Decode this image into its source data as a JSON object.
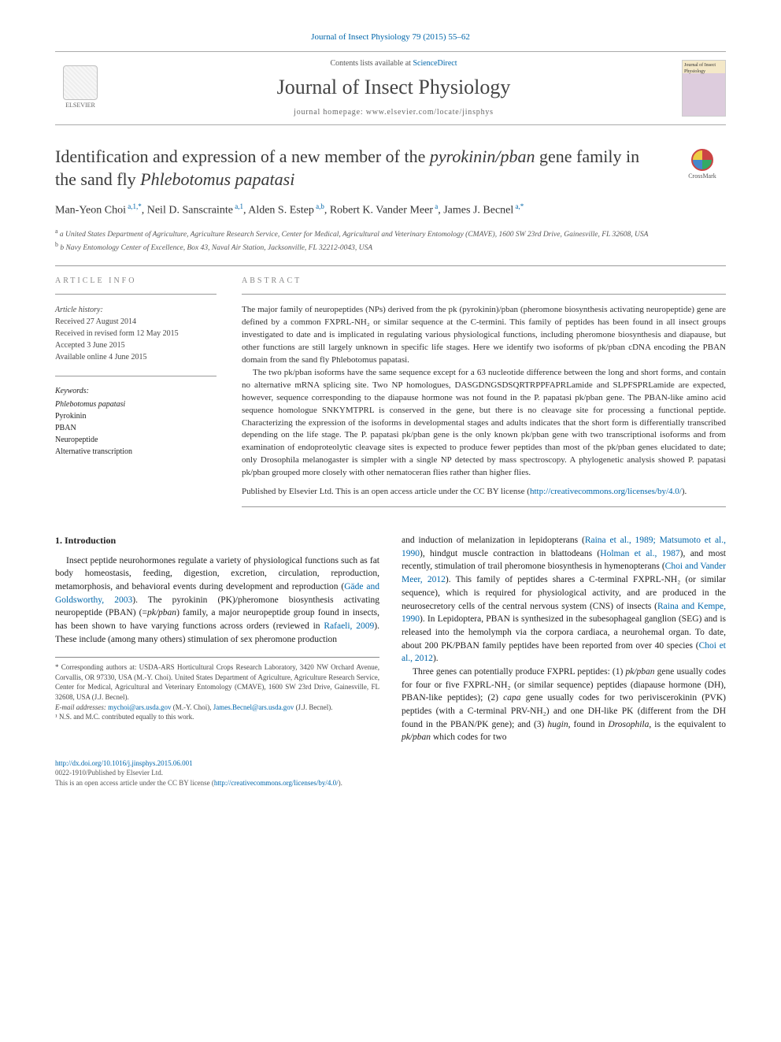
{
  "journal_ref": "Journal of Insect Physiology 79 (2015) 55–62",
  "header": {
    "contents_prefix": "Contents lists available at ",
    "contents_link": "ScienceDirect",
    "journal_title": "Journal of Insect Physiology",
    "homepage_label": "journal homepage: www.elsevier.com/locate/jinsphys",
    "elsevier_label": "ELSEVIER",
    "cover_text": "Journal of Insect Physiology"
  },
  "crossmark_label": "CrossMark",
  "title_html": "Identification and expression of a new member of the <i>pyrokinin/pban</i> gene family in the sand fly <i>Phlebotomus papatasi</i>",
  "authors_html": "Man-Yeon Choi<sup> a,1,*</sup>, Neil D. Sanscrainte<sup> a,1</sup>, Alden S. Estep<sup> a,b</sup>, Robert K. Vander Meer<sup> a</sup>, James J. Becnel<sup> a,*</sup>",
  "affiliations": [
    "a United States Department of Agriculture, Agriculture Research Service, Center for Medical, Agricultural and Veterinary Entomology (CMAVE), 1600 SW 23rd Drive, Gainesville, FL 32608, USA",
    "b Navy Entomology Center of Excellence, Box 43, Naval Air Station, Jacksonville, FL 32212-0043, USA"
  ],
  "article_info_heading": "ARTICLE INFO",
  "abstract_heading": "ABSTRACT",
  "history": {
    "label": "Article history:",
    "received": "Received 27 August 2014",
    "revised": "Received in revised form 12 May 2015",
    "accepted": "Accepted 3 June 2015",
    "online": "Available online 4 June 2015"
  },
  "keywords_label": "Keywords:",
  "keywords": [
    "Phlebotomus papatasi",
    "Pyrokinin",
    "PBAN",
    "Neuropeptide",
    "Alternative transcription"
  ],
  "abstract_p1": "The major family of neuropeptides (NPs) derived from the pk (pyrokinin)/pban (pheromone biosynthesis activating neuropeptide) gene are defined by a common FXPRL-NH₂ or similar sequence at the C-termini. This family of peptides has been found in all insect groups investigated to date and is implicated in regulating various physiological functions, including pheromone biosynthesis and diapause, but other functions are still largely unknown in specific life stages. Here we identify two isoforms of pk/pban cDNA encoding the PBAN domain from the sand fly Phlebotomus papatasi.",
  "abstract_p2": "The two pk/pban isoforms have the same sequence except for a 63 nucleotide difference between the long and short forms, and contain no alternative mRNA splicing site. Two NP homologues, DASGDNGSDSQRTRPPFAPRLamide and SLPFSPRLamide are expected, however, sequence corresponding to the diapause hormone was not found in the P. papatasi pk/pban gene. The PBAN-like amino acid sequence homologue SNKYMTPRL is conserved in the gene, but there is no cleavage site for processing a functional peptide. Characterizing the expression of the isoforms in developmental stages and adults indicates that the short form is differentially transcribed depending on the life stage. The P. papatasi pk/pban gene is the only known pk/pban gene with two transcriptional isoforms and from examination of endoproteolytic cleavage sites is expected to produce fewer peptides than most of the pk/pban genes elucidated to date; only Drosophila melanogaster is simpler with a single NP detected by mass spectroscopy. A phylogenetic analysis showed P. papatasi pk/pban grouped more closely with other nematoceran flies rather than higher flies.",
  "pub_note_html": "Published by Elsevier Ltd. This is an open access article under the CC BY license (<a href='#'>http://creativecommons.org/licenses/by/4.0/</a>).",
  "intro_heading": "1. Introduction",
  "intro_p1_html": "Insect peptide neurohormones regulate a variety of physiological functions such as fat body homeostasis, feeding, digestion, excretion, circulation, reproduction, metamorphosis, and behavioral events during development and reproduction (<a href='#'>Gäde and Goldsworthy, 2003</a>). The pyrokinin (PK)/pheromone biosynthesis activating neuropeptide (PBAN) (=<i>pk/pban</i>) family, a major neuropeptide group found in insects, has been shown to have varying functions across orders (reviewed in <a href='#'>Rafaeli, 2009</a>). These include (among many others) stimulation of sex pheromone production",
  "intro_p2_html": "and induction of melanization in lepidopterans (<a href='#'>Raina et al., 1989; Matsumoto et al., 1990</a>), hindgut muscle contraction in blattodeans (<a href='#'>Holman et al., 1987</a>), and most recently, stimulation of trail pheromone biosynthesis in hymenopterans (<a href='#'>Choi and Vander Meer, 2012</a>). This family of peptides shares a C-terminal FXPRL-NH₂ (or similar sequence), which is required for physiological activity, and are produced in the neurosecretory cells of the central nervous system (CNS) of insects (<a href='#'>Raina and Kempe, 1990</a>). In Lepidoptera, PBAN is synthesized in the subesophageal ganglion (SEG) and is released into the hemolymph via the corpora cardiaca, a neurohemal organ. To date, about 200 PK/PBAN family peptides have been reported from over 40 species (<a href='#'>Choi et al., 2012</a>).",
  "intro_p3_html": "Three genes can potentially produce FXPRL peptides: (1) <i>pk/pban</i> gene usually codes for four or five FXPRL-NH₂ (or similar sequence) peptides (diapause hormone (DH), PBAN-like peptides); (2) <i>capa</i> gene usually codes for two periviscerokinin (PVK) peptides (with a C-terminal PRV-NH₂) and one DH-like PK (different from the DH found in the PBAN/PK gene); and (3) <i>hugin</i>, found in <i>Drosophila</i>, is the equivalent to <i>pk/pban</i> which codes for two",
  "footnotes": {
    "corr_html": "* Corresponding authors at: USDA-ARS Horticultural Crops Research Laboratory, 3420 NW Orchard Avenue, Corvallis, OR 97330, USA (M.-Y. Choi). United States Department of Agriculture, Agriculture Research Service, Center for Medical, Agricultural and Veterinary Entomology (CMAVE), 1600 SW 23rd Drive, Gainesville, FL 32608, USA (J.J. Becnel).",
    "email_label": "E-mail addresses:",
    "email1": "mychoi@ars.usda.gov",
    "email1_who": " (M.-Y. Choi), ",
    "email2": "James.Becnel@ars.usda.gov",
    "email2_who": " (J.J. Becnel).",
    "equal": "¹ N.S. and M.C. contributed equally to this work."
  },
  "footer": {
    "doi": "http://dx.doi.org/10.1016/j.jinsphys.2015.06.001",
    "issn_line": "0022-1910/Published by Elsevier Ltd.",
    "license_html": "This is an open access article under the CC BY license (<a href='#'>http://creativecommons.org/licenses/by/4.0/</a>)."
  },
  "colors": {
    "link": "#0066aa",
    "text": "#202020",
    "rule": "#999999",
    "muted": "#888888"
  }
}
